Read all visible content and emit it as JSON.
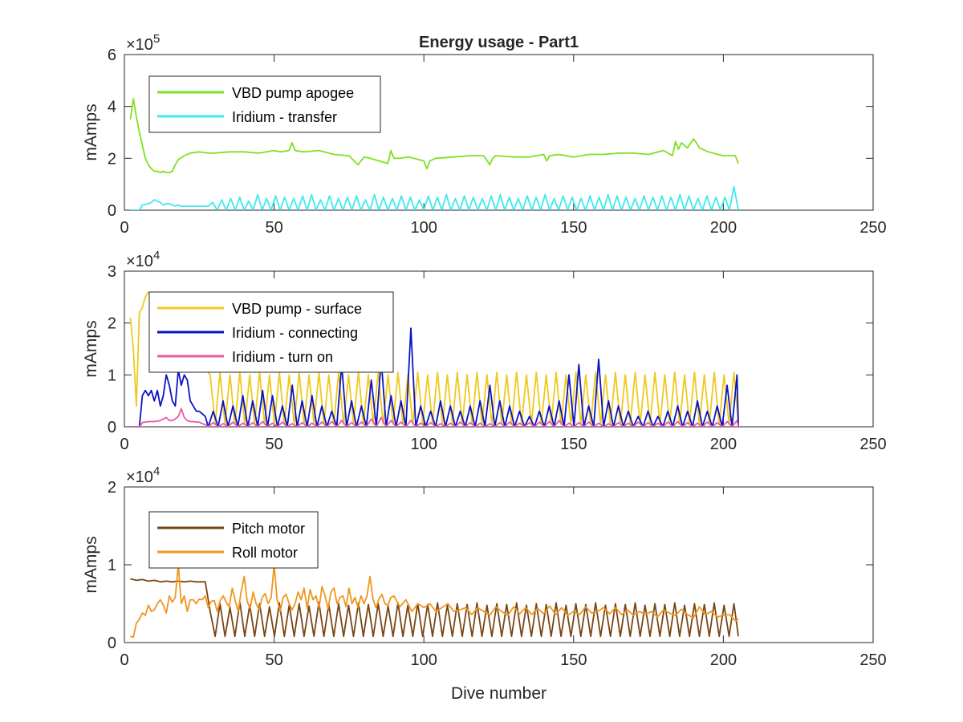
{
  "chart_data": [
    {
      "type": "line",
      "title": "Energy usage - Part1",
      "xlabel": "",
      "ylabel": "mAmps",
      "exponent": "5",
      "xlim": [
        0,
        250
      ],
      "ylim": [
        0,
        600000
      ],
      "xticks": [
        0,
        50,
        100,
        150,
        200,
        250
      ],
      "yticks": [
        0,
        200000,
        400000,
        600000
      ],
      "yticklabels": [
        "0",
        "2",
        "4",
        "6"
      ],
      "legend_location": "top-left",
      "series": [
        {
          "name": "VBD pump apogee",
          "color": "#7fe022",
          "x": [
            2,
            3,
            4,
            5,
            6,
            7,
            8,
            9,
            10,
            11,
            12,
            13,
            14,
            15,
            16,
            17,
            18,
            20,
            22,
            25,
            28,
            30,
            35,
            40,
            45,
            50,
            52,
            55,
            56,
            57,
            60,
            65,
            70,
            75,
            78,
            80,
            82,
            85,
            88,
            89,
            90,
            92,
            95,
            100,
            101,
            102,
            104,
            110,
            115,
            120,
            122,
            123,
            124,
            130,
            135,
            140,
            141,
            142,
            145,
            150,
            155,
            160,
            165,
            170,
            175,
            180,
            183,
            184,
            185,
            186,
            188,
            190,
            191,
            192,
            195,
            200,
            204,
            205
          ],
          "y": [
            350000,
            430000,
            360000,
            300000,
            250000,
            200000,
            175000,
            160000,
            150000,
            150000,
            145000,
            150000,
            145000,
            145000,
            150000,
            175000,
            195000,
            210000,
            220000,
            225000,
            220000,
            220000,
            225000,
            225000,
            220000,
            230000,
            225000,
            230000,
            260000,
            230000,
            225000,
            230000,
            215000,
            210000,
            175000,
            205000,
            200000,
            190000,
            180000,
            230000,
            200000,
            200000,
            205000,
            190000,
            160000,
            190000,
            200000,
            205000,
            210000,
            210000,
            175000,
            200000,
            210000,
            205000,
            205000,
            215000,
            190000,
            210000,
            215000,
            205000,
            215000,
            215000,
            220000,
            220000,
            215000,
            230000,
            210000,
            265000,
            235000,
            260000,
            240000,
            275000,
            260000,
            240000,
            225000,
            210000,
            210000,
            180000
          ]
        },
        {
          "name": "Iridium - transfer",
          "color": "#40e8f0",
          "x": [
            2,
            4,
            5,
            6,
            8,
            9,
            10,
            11,
            12,
            13,
            14,
            15,
            17,
            18,
            19,
            20,
            22,
            25,
            28
          ],
          "y": [
            0,
            0,
            0,
            20000,
            25000,
            30000,
            40000,
            35000,
            30000,
            20000,
            25000,
            25000,
            15000,
            20000,
            15000,
            15000,
            15000,
            15000,
            15000
          ],
          "pulse": {
            "start": 28,
            "end": 205,
            "period": 3,
            "base": 0,
            "peaks": [
              30000,
              40000,
              45000,
              50000,
              35000,
              60000,
              45000,
              55000,
              50000,
              45000,
              55000,
              60000,
              40000,
              55000,
              45000,
              50000,
              55000,
              40000,
              60000,
              50000,
              45000,
              55000,
              50000,
              40000,
              55000,
              50000,
              60000,
              45000,
              55000,
              50000,
              45000,
              55000,
              60000,
              50000,
              45000,
              55000,
              50000,
              60000,
              45000,
              55000,
              50000,
              45000,
              55000,
              50000,
              60000,
              55000,
              50000,
              45000,
              55000,
              50000,
              55000,
              50000,
              60000,
              55000,
              45000,
              55000,
              50000,
              50000,
              90000
            ]
          }
        }
      ]
    },
    {
      "type": "line",
      "title": "",
      "xlabel": "",
      "ylabel": "mAmps",
      "exponent": "4",
      "xlim": [
        0,
        250
      ],
      "ylim": [
        0,
        30000
      ],
      "xticks": [
        0,
        50,
        100,
        150,
        200,
        250
      ],
      "yticks": [
        0,
        10000,
        20000,
        30000
      ],
      "yticklabels": [
        "0",
        "1",
        "2",
        "3"
      ],
      "legend_location": "top-left",
      "series": [
        {
          "name": "VBD pump - surface",
          "color": "#f0c81e",
          "x": [
            2,
            3,
            4,
            5,
            6,
            7,
            8
          ],
          "y": [
            21000,
            15000,
            4000,
            22000,
            23000,
            25000,
            26000
          ],
          "pulse": {
            "start": 27,
            "end": 205,
            "period": 3.3,
            "base": 500,
            "peaks": [
              10000,
              10500,
              10000,
              10500,
              10000,
              10500,
              10000,
              10500,
              10000,
              10500,
              10000,
              10500,
              10000,
              10500,
              10000,
              10500,
              10000,
              10500,
              10000,
              10500,
              10000,
              10500,
              10000,
              10500,
              10000,
              10500,
              10000,
              10500,
              10000,
              10500,
              10000,
              10500,
              10000,
              10500,
              10000,
              10500,
              10000,
              10500,
              10000,
              10500,
              10000,
              10500,
              10000,
              10500,
              10000,
              10500,
              10000,
              10500,
              10000,
              10500,
              10000,
              10500,
              10000,
              10500
            ]
          }
        },
        {
          "name": "Iridium - connecting",
          "color": "#0a14c0",
          "x": [
            2,
            4,
            5,
            6,
            7,
            8,
            9,
            10,
            11,
            12,
            13,
            14,
            15,
            16,
            17,
            18,
            19,
            20,
            21,
            22,
            23,
            24,
            25,
            26,
            27,
            28
          ],
          "y": [
            0,
            0,
            0,
            6000,
            7000,
            6000,
            7000,
            5000,
            7000,
            4000,
            6000,
            10000,
            8000,
            5000,
            4000,
            11000,
            8000,
            10000,
            9000,
            5000,
            4000,
            3000,
            3000,
            2500,
            2000,
            0
          ],
          "pulse": {
            "start": 28,
            "end": 205,
            "period": 3.3,
            "base": 0,
            "peaks": [
              3000,
              5000,
              4000,
              6000,
              5000,
              7000,
              6000,
              4000,
              8000,
              5000,
              6000,
              4000,
              3000,
              12000,
              5000,
              4000,
              9000,
              13000,
              6000,
              5000,
              19000,
              4000,
              3000,
              5000,
              4000,
              3000,
              4000,
              5000,
              8000,
              5000,
              4000,
              3000,
              2000,
              3000,
              4000,
              5000,
              10000,
              12000,
              4000,
              13000,
              5000,
              4000,
              3000,
              2000,
              3000,
              2000,
              3000,
              4000,
              3000,
              5000,
              3000,
              4000,
              8000,
              10000
            ]
          }
        },
        {
          "name": "Iridium - turn on",
          "color": "#e858a8",
          "x": [
            2,
            4,
            5,
            6,
            8,
            10,
            12,
            13,
            14,
            15,
            16,
            17,
            18,
            19,
            20,
            21,
            22,
            23,
            24,
            25,
            26,
            27,
            28
          ],
          "y": [
            0,
            0,
            0,
            800,
            1000,
            1000,
            1200,
            1500,
            1800,
            1200,
            1200,
            1500,
            2000,
            3500,
            1800,
            1200,
            1000,
            1000,
            900,
            900,
            600,
            400,
            0
          ],
          "pulse": {
            "start": 28,
            "end": 205,
            "period": 3.3,
            "base": 0,
            "peaks": [
              800,
              600,
              900,
              700,
              800,
              1000,
              700,
              900,
              600,
              800,
              700,
              900,
              1000,
              1200,
              800,
              900,
              1500,
              1800,
              1200,
              900,
              1200,
              700,
              800,
              600,
              700,
              900,
              800,
              700,
              600,
              800,
              900,
              700,
              800,
              900,
              1000,
              1200,
              700,
              800,
              900,
              700,
              600,
              800,
              700,
              900,
              800,
              700,
              900,
              1000,
              800,
              700,
              900,
              800,
              1000,
              1200
            ]
          }
        }
      ]
    },
    {
      "type": "line",
      "title": "",
      "xlabel": "Dive number",
      "ylabel": "mAmps",
      "exponent": "4",
      "xlim": [
        0,
        250
      ],
      "ylim": [
        0,
        20000
      ],
      "xticks": [
        0,
        50,
        100,
        150,
        200,
        250
      ],
      "yticks": [
        0,
        10000,
        20000
      ],
      "yticklabels": [
        "0",
        "1",
        "2"
      ],
      "legend_location": "top-left",
      "series": [
        {
          "name": "Pitch motor",
          "color": "#7a4614",
          "x": [
            2,
            4,
            6,
            8,
            10,
            12,
            14,
            16,
            18,
            20,
            22,
            24,
            26,
            27
          ],
          "y": [
            8200,
            8000,
            8100,
            7900,
            8000,
            7800,
            7900,
            7800,
            7900,
            7800,
            7900,
            7800,
            7800,
            7800
          ],
          "pulse": {
            "start": 27,
            "end": 205,
            "period": 3.3,
            "base": 800,
            "peaks": [
              4000,
              5000,
              4500,
              5200,
              4800,
              5000,
              4600,
              5100,
              4800,
              5000,
              4700,
              5200,
              4900,
              5000,
              4800,
              5100,
              4900,
              5000,
              4700,
              5100,
              4800,
              5000,
              4900,
              5100,
              4800,
              5000,
              4900,
              5100,
              4800,
              5000,
              4900,
              5100,
              4800,
              5000,
              4900,
              5100,
              4800,
              5000,
              4900,
              5100,
              4800,
              5000,
              4900,
              5100,
              4800,
              5000,
              4900,
              5100,
              4800,
              5000,
              4900,
              5100,
              4800,
              5000
            ]
          }
        },
        {
          "name": "Roll motor",
          "color": "#f0961e",
          "x": [
            2,
            3,
            4,
            5,
            6,
            7,
            8,
            9,
            10,
            11,
            12,
            13,
            14,
            15,
            16,
            17,
            18,
            19,
            20,
            21,
            22,
            23,
            24,
            25,
            26,
            27,
            28,
            29,
            30,
            31,
            32,
            33,
            34,
            35,
            36,
            37,
            38,
            39,
            40,
            41,
            42,
            43,
            44,
            45,
            46,
            47,
            48,
            49,
            50,
            51,
            52,
            53,
            54,
            55,
            56,
            57,
            58,
            59,
            60,
            61,
            62,
            63,
            64,
            65,
            66,
            67,
            68,
            69,
            70,
            71,
            72,
            73,
            74,
            75,
            76,
            77,
            78,
            79,
            80,
            81,
            82,
            83,
            84,
            85,
            86,
            87,
            88,
            89,
            90,
            92,
            94,
            96,
            98,
            100,
            102,
            104,
            106,
            108,
            110,
            112,
            114,
            116,
            118,
            120,
            122,
            124,
            126,
            128,
            130,
            132,
            134,
            136,
            138,
            140,
            142,
            144,
            146,
            148,
            150,
            152,
            154,
            156,
            158,
            160,
            162,
            164,
            166,
            168,
            170,
            172,
            174,
            176,
            178,
            180,
            182,
            184,
            186,
            188,
            190,
            192,
            194,
            196,
            198,
            200,
            202,
            204,
            205
          ],
          "y": [
            800,
            700,
            2500,
            3000,
            3800,
            3500,
            4800,
            4000,
            4200,
            5000,
            5500,
            4800,
            3800,
            6000,
            5200,
            5800,
            10000,
            5000,
            6000,
            4000,
            5500,
            5500,
            5000,
            5600,
            5500,
            6000,
            4500,
            5300,
            5400,
            4000,
            5400,
            6000,
            5200,
            4600,
            7000,
            5400,
            4000,
            6600,
            8500,
            5300,
            4400,
            6500,
            5000,
            4200,
            5800,
            6300,
            5000,
            5800,
            10000,
            5500,
            4000,
            5800,
            6200,
            5000,
            4200,
            5000,
            6500,
            5500,
            7000,
            4400,
            6800,
            5500,
            6000,
            4500,
            7200,
            6000,
            4400,
            6500,
            7000,
            5000,
            5800,
            6000,
            4600,
            7000,
            5000,
            5800,
            4500,
            6000,
            5000,
            6000,
            8500,
            5600,
            4500,
            5600,
            6200,
            5000,
            4800,
            5800,
            6000,
            4600,
            5500,
            4000,
            5000,
            4500,
            5000,
            4000,
            4500,
            5000,
            4000,
            4200,
            4500,
            3600,
            4500,
            4000,
            3500,
            4600,
            4000,
            3500,
            4600,
            3700,
            4500,
            3600,
            4400,
            3700,
            4700,
            3600,
            4500,
            3500,
            4000,
            3600,
            4600,
            3800,
            4000,
            4500,
            3700,
            4500,
            3600,
            4200,
            3500,
            4000,
            3600,
            4000,
            3300,
            4200,
            3800,
            3500,
            4300,
            3600,
            3200,
            4600,
            3600,
            4000,
            3300,
            3500,
            3600,
            2800,
            3000
          ]
        }
      ]
    }
  ]
}
